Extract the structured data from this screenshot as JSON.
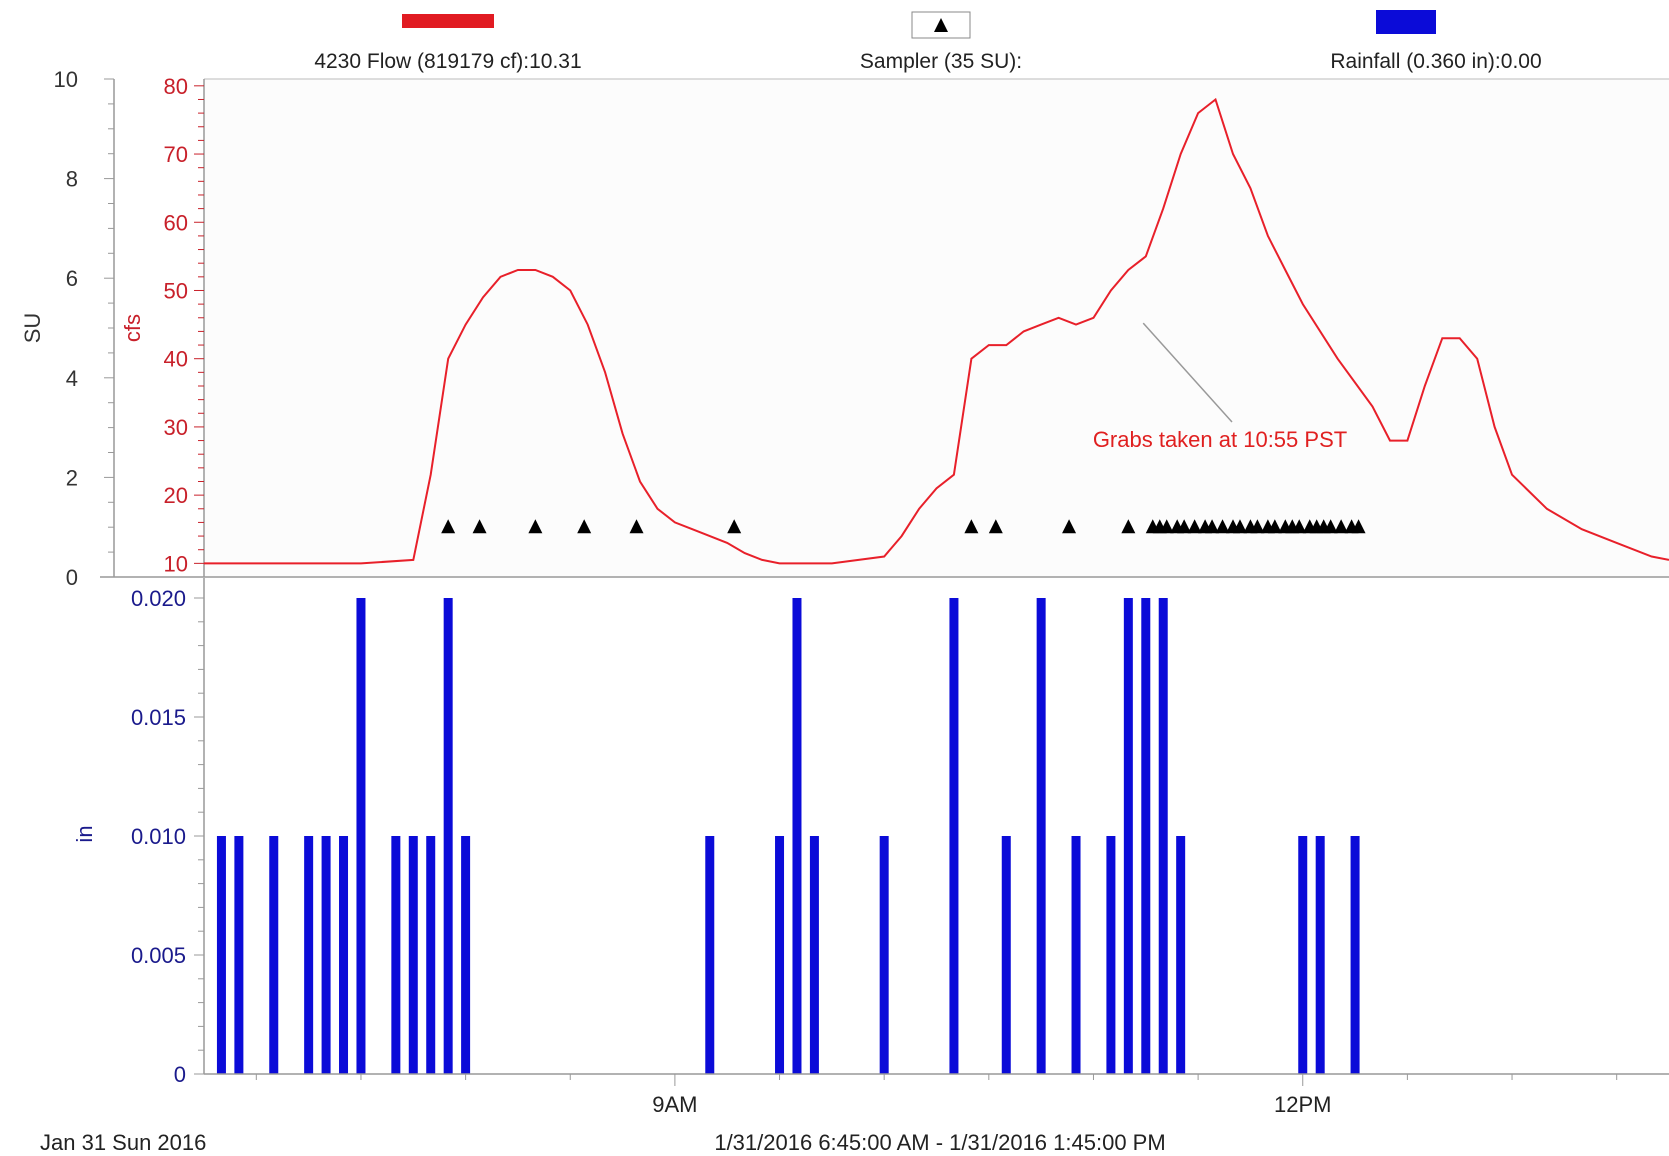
{
  "legend": {
    "flow_label": "4230 Flow (819179 cf):10.31",
    "sampler_label": "Sampler (35 SU):",
    "rainfall_label": "Rainfall (0.360 in):0.00"
  },
  "footer": {
    "date_label": "Jan 31 Sun 2016",
    "range_label": "1/31/2016 6:45:00 AM - 1/31/2016 1:45:00 PM"
  },
  "colors": {
    "flow": "#e8202a",
    "flow_legend": "#e11b22",
    "sampler": "#000000",
    "rainfall": "#0b0bd8",
    "su_axis": "#333333",
    "cfs_axis": "#c8202a",
    "in_axis": "#1a1a8c",
    "annotation": "#e02020"
  },
  "chart_data": [
    {
      "type": "line",
      "title": "",
      "x_range": [
        "6:45",
        "13:45"
      ],
      "xticks": [
        "9AM",
        "12PM"
      ],
      "axes": {
        "su": {
          "label": "SU",
          "range": [
            0,
            10
          ],
          "ticks": [
            "0",
            "2",
            "4",
            "6",
            "8",
            "10"
          ]
        },
        "cfs": {
          "label": "cfs",
          "range": [
            8,
            81
          ],
          "ticks": [
            "10",
            "20",
            "30",
            "40",
            "50",
            "60",
            "70",
            "80"
          ]
        }
      },
      "series": [
        {
          "name": "4230 Flow (819179 cf):10.31",
          "axis": "cfs",
          "x": [
            "6:45",
            "7:00",
            "7:15",
            "7:30",
            "7:45",
            "7:50",
            "7:55",
            "8:00",
            "8:05",
            "8:10",
            "8:15",
            "8:20",
            "8:25",
            "8:30",
            "8:35",
            "8:40",
            "8:45",
            "8:50",
            "8:55",
            "9:00",
            "9:05",
            "9:10",
            "9:15",
            "9:20",
            "9:25",
            "9:30",
            "9:45",
            "10:00",
            "10:05",
            "10:10",
            "10:15",
            "10:20",
            "10:25",
            "10:30",
            "10:35",
            "10:40",
            "10:45",
            "10:50",
            "10:55",
            "11:00",
            "11:05",
            "11:10",
            "11:15",
            "11:20",
            "11:25",
            "11:30",
            "11:35",
            "11:40",
            "11:45",
            "11:50",
            "11:55",
            "12:00",
            "12:10",
            "12:20",
            "12:25",
            "12:30",
            "12:35",
            "12:40",
            "12:45",
            "12:50",
            "12:55",
            "13:00",
            "13:10",
            "13:20",
            "13:30",
            "13:40",
            "13:45"
          ],
          "values": [
            10,
            10,
            10,
            10,
            10.5,
            23,
            40,
            45,
            49,
            52,
            53,
            53,
            52,
            50,
            45,
            38,
            29,
            22,
            18,
            16,
            15,
            14,
            13,
            11.5,
            10.5,
            10,
            10,
            11,
            14,
            18,
            21,
            23,
            40,
            42,
            42,
            44,
            45,
            46,
            45,
            46,
            50,
            53,
            55,
            62,
            70,
            76,
            78,
            70,
            65,
            58,
            53,
            48,
            40,
            33,
            28,
            28,
            36,
            43,
            43,
            40,
            30,
            23,
            18,
            15,
            13,
            11,
            10.5
          ]
        },
        {
          "name": "Sampler (35 SU):",
          "type": "scatter",
          "marker": "triangle",
          "axis": "su",
          "x": [
            "7:55",
            "8:04",
            "8:20",
            "8:34",
            "8:49",
            "9:17",
            "10:25",
            "10:32",
            "10:53",
            "11:10",
            "11:17",
            "11:19",
            "11:21",
            "11:24",
            "11:26",
            "11:29",
            "11:32",
            "11:34",
            "11:37",
            "11:40",
            "11:42",
            "11:45",
            "11:47",
            "11:50",
            "11:52",
            "11:55",
            "11:57",
            "11:59",
            "12:02",
            "12:04",
            "12:06",
            "12:08",
            "12:11",
            "12:14",
            "12:16"
          ],
          "values": [
            1,
            1,
            1,
            1,
            1,
            1,
            1,
            1,
            1,
            1,
            1,
            1,
            1,
            1,
            1,
            1,
            1,
            1,
            1,
            1,
            1,
            1,
            1,
            1,
            1,
            1,
            1,
            1,
            1,
            1,
            1,
            1,
            1,
            1,
            1
          ]
        }
      ],
      "annotations": [
        {
          "text": "Grabs taken at 10:55 PST",
          "x": "11:20",
          "y": 45.5
        }
      ]
    },
    {
      "type": "bar",
      "title": "",
      "axes": {
        "in": {
          "label": "in",
          "range": [
            0,
            0.02
          ],
          "ticks": [
            "0",
            "0.005",
            "0.010",
            "0.015",
            "0.020"
          ]
        }
      },
      "series": [
        {
          "name": "Rainfall (0.360 in):0.00",
          "x": [
            "6:50",
            "6:55",
            "7:05",
            "7:15",
            "7:20",
            "7:25",
            "7:30",
            "7:40",
            "7:45",
            "7:50",
            "7:55",
            "8:00",
            "9:10",
            "9:30",
            "9:35",
            "9:40",
            "10:00",
            "10:20",
            "10:35",
            "10:45",
            "10:55",
            "11:05",
            "11:10",
            "11:15",
            "11:20",
            "11:25",
            "12:00",
            "12:05",
            "12:15"
          ],
          "values": [
            0.01,
            0.01,
            0.01,
            0.01,
            0.01,
            0.01,
            0.02,
            0.01,
            0.01,
            0.01,
            0.02,
            0.01,
            0.01,
            0.01,
            0.02,
            0.01,
            0.01,
            0.02,
            0.01,
            0.02,
            0.01,
            0.01,
            0.02,
            0.02,
            0.02,
            0.01,
            0.01,
            0.01,
            0.01
          ]
        }
      ]
    }
  ]
}
